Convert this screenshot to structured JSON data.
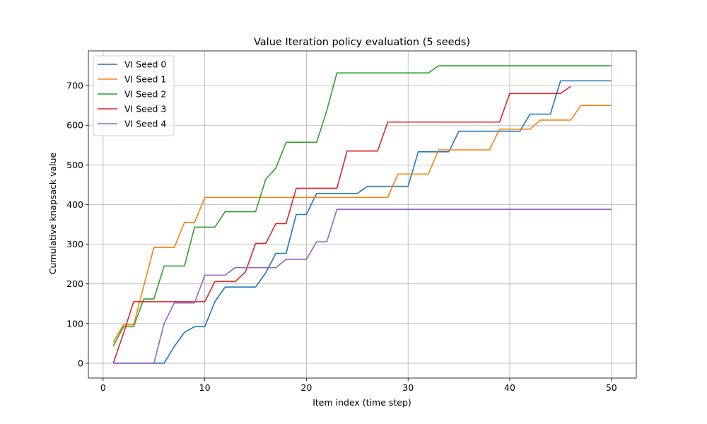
{
  "chart_data": {
    "type": "line",
    "title": "Value Iteration policy evaluation (5 seeds)",
    "xlabel": "Item index (time step)",
    "ylabel": "Cumulative knapsack value",
    "xlim": [
      -1.45,
      52.45
    ],
    "ylim": [
      -37.5,
      787.5
    ],
    "x_ticks": [
      0,
      10,
      20,
      30,
      40,
      50
    ],
    "y_ticks": [
      0,
      100,
      200,
      300,
      400,
      500,
      600,
      700
    ],
    "grid": true,
    "legend_position": "upper left",
    "series": [
      {
        "name": "VI Seed 0",
        "color": "#1f77b4",
        "x": [
          1,
          2,
          3,
          4,
          5,
          6,
          7,
          8,
          9,
          10,
          11,
          12,
          13,
          14,
          15,
          16,
          17,
          18,
          19,
          20,
          21,
          22,
          23,
          24,
          25,
          26,
          27,
          28,
          29,
          30,
          31,
          32,
          33,
          34,
          35,
          36,
          37,
          38,
          39,
          40,
          41,
          42,
          43,
          44,
          45,
          46,
          47,
          48,
          49,
          50
        ],
        "y": [
          0,
          0,
          0,
          0,
          0,
          0,
          42,
          78,
          92,
          92,
          155,
          192,
          192,
          192,
          192,
          228,
          277,
          277,
          375,
          375,
          428,
          428,
          428,
          428,
          428,
          446,
          446,
          446,
          446,
          446,
          533,
          533,
          533,
          533,
          585,
          585,
          585,
          585,
          585,
          585,
          585,
          628,
          628,
          628,
          712,
          712,
          712,
          712,
          712,
          712
        ]
      },
      {
        "name": "VI Seed 1",
        "color": "#ff7f0e",
        "x": [
          1,
          2,
          3,
          4,
          5,
          6,
          7,
          8,
          9,
          10,
          11,
          12,
          13,
          14,
          15,
          16,
          17,
          18,
          19,
          20,
          21,
          22,
          23,
          24,
          25,
          26,
          27,
          28,
          29,
          30,
          31,
          32,
          33,
          34,
          35,
          36,
          37,
          38,
          39,
          40,
          41,
          42,
          43,
          44,
          45,
          46,
          47,
          48,
          49,
          50
        ],
        "y": [
          53,
          97,
          97,
          195,
          292,
          292,
          292,
          355,
          355,
          418,
          418,
          418,
          418,
          418,
          418,
          418,
          418,
          418,
          418,
          418,
          418,
          418,
          418,
          418,
          418,
          418,
          418,
          418,
          477,
          477,
          477,
          477,
          538,
          538,
          538,
          538,
          538,
          538,
          590,
          590,
          590,
          590,
          613,
          613,
          613,
          613,
          650,
          650,
          650,
          650
        ]
      },
      {
        "name": "VI Seed 2",
        "color": "#2ca02c",
        "x": [
          1,
          2,
          3,
          4,
          5,
          6,
          7,
          8,
          9,
          10,
          11,
          12,
          13,
          14,
          15,
          16,
          17,
          18,
          19,
          20,
          21,
          22,
          23,
          24,
          25,
          26,
          27,
          28,
          29,
          30,
          31,
          32,
          33,
          34,
          35,
          36,
          37,
          38,
          39,
          40,
          41,
          42,
          43,
          44,
          45,
          46,
          47,
          48,
          49,
          50
        ],
        "y": [
          43,
          92,
          92,
          162,
          162,
          245,
          245,
          245,
          343,
          343,
          343,
          382,
          382,
          382,
          382,
          464,
          492,
          557,
          557,
          557,
          557,
          637,
          732,
          732,
          732,
          732,
          732,
          732,
          732,
          732,
          732,
          732,
          750,
          750,
          750,
          750,
          750,
          750,
          750,
          750,
          750,
          750,
          750,
          750,
          750,
          750,
          750,
          750,
          750,
          750
        ]
      },
      {
        "name": "VI Seed 3",
        "color": "#d62728",
        "x": [
          1,
          2,
          3,
          4,
          5,
          6,
          7,
          8,
          9,
          10,
          11,
          12,
          13,
          14,
          15,
          16,
          17,
          18,
          19,
          20,
          21,
          22,
          23,
          24,
          25,
          26,
          27,
          28,
          29,
          30,
          31,
          32,
          33,
          34,
          35,
          36,
          37,
          38,
          39,
          40,
          41,
          42,
          43,
          44,
          45,
          46
        ],
        "y": [
          0,
          75,
          155,
          155,
          155,
          155,
          155,
          155,
          155,
          155,
          206,
          206,
          206,
          230,
          302,
          302,
          352,
          352,
          441,
          441,
          441,
          441,
          441,
          535,
          535,
          535,
          535,
          608,
          608,
          608,
          608,
          608,
          608,
          608,
          608,
          608,
          608,
          608,
          608,
          680,
          680,
          680,
          680,
          680,
          680,
          698
        ]
      },
      {
        "name": "VI Seed 4",
        "color": "#9467bd",
        "x": [
          1,
          2,
          3,
          4,
          5,
          6,
          7,
          8,
          9,
          10,
          11,
          12,
          13,
          14,
          15,
          16,
          17,
          18,
          19,
          20,
          21,
          22,
          23,
          24,
          25,
          26,
          27,
          28,
          29,
          30,
          31,
          32,
          33,
          34,
          35,
          36,
          37,
          38,
          39,
          40,
          41,
          42,
          43,
          44,
          45,
          46,
          47,
          48,
          49,
          50
        ],
        "y": [
          0,
          0,
          0,
          0,
          0,
          100,
          152,
          152,
          152,
          222,
          222,
          222,
          241,
          241,
          241,
          241,
          241,
          262,
          262,
          262,
          306,
          306,
          388,
          388,
          388,
          388,
          388,
          388,
          388,
          388,
          388,
          388,
          388,
          388,
          388,
          388,
          388,
          388,
          388,
          388,
          388,
          388,
          388,
          388,
          388,
          388,
          388,
          388,
          388,
          388
        ]
      }
    ]
  }
}
